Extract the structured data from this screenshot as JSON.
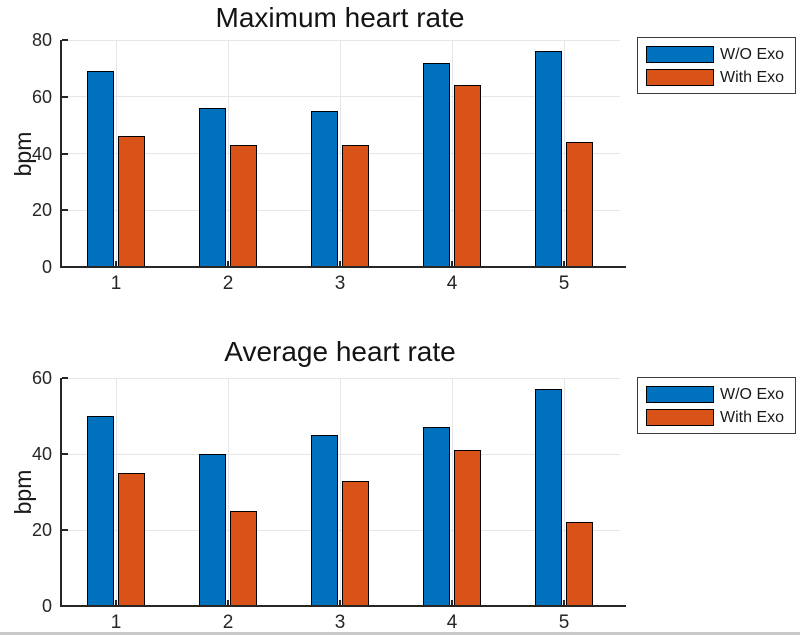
{
  "figure": {
    "background": "#ffffff"
  },
  "colors": {
    "series1": "#0072BD",
    "series2": "#D95319",
    "bar_edge": "#000000",
    "grid": "#e6e6e6",
    "axis": "#262626",
    "tick_text": "#262626",
    "title_text": "#141414",
    "legend_border": "#3c3c3c"
  },
  "chart_data": [
    {
      "type": "bar",
      "title": "Maximum heart rate",
      "xlabel": "",
      "ylabel": "bpm",
      "categories": [
        "1",
        "2",
        "3",
        "4",
        "5"
      ],
      "series": [
        {
          "name": "W/O Exo",
          "color": "#0072BD",
          "values": [
            69,
            56,
            55,
            72,
            76
          ]
        },
        {
          "name": "With Exo",
          "color": "#D95319",
          "values": [
            46,
            43,
            43,
            64,
            44
          ]
        }
      ],
      "ylim": [
        0,
        80
      ],
      "yticks": [
        0,
        20,
        40,
        60,
        80
      ],
      "grid": true,
      "legend_position": "outside-top-right"
    },
    {
      "type": "bar",
      "title": "Average heart rate",
      "xlabel": "",
      "ylabel": "bpm",
      "categories": [
        "1",
        "2",
        "3",
        "4",
        "5"
      ],
      "series": [
        {
          "name": "W/O Exo",
          "color": "#0072BD",
          "values": [
            50,
            40,
            45,
            47,
            57
          ]
        },
        {
          "name": "With Exo",
          "color": "#D95319",
          "values": [
            35,
            25,
            33,
            41,
            22
          ]
        }
      ],
      "ylim": [
        0,
        60
      ],
      "yticks": [
        0,
        20,
        40,
        60
      ],
      "grid": true,
      "legend_position": "outside-top-right"
    }
  ]
}
